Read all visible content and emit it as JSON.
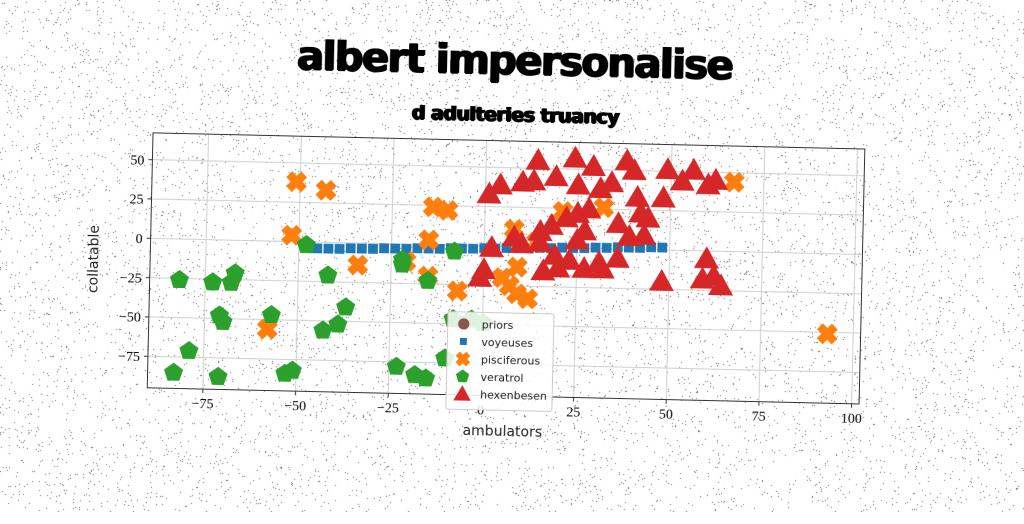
{
  "chart_data": {
    "type": "scatter",
    "title": "albert impersonalise",
    "subtitle": "d adulteries truancy",
    "xlabel": "ambulators",
    "ylabel": "collatable",
    "xlim": [
      -90,
      102
    ],
    "ylim": [
      -95,
      67
    ],
    "xticks": [
      -75,
      -50,
      -25,
      0,
      25,
      50,
      75,
      100
    ],
    "yticks": [
      50,
      25,
      0,
      -25,
      -50,
      -75
    ],
    "xtick_labels": [
      "−75",
      "−50",
      "−25",
      "0",
      "25",
      "50",
      "75",
      "100"
    ],
    "ytick_labels": [
      "50",
      "25",
      "0",
      "−25",
      "−50",
      "−75"
    ],
    "grid": true,
    "legend_position": "lower-center",
    "series": [
      {
        "name": "priors",
        "marker": "circle",
        "color": "#8c564b",
        "points": []
      },
      {
        "name": "voyeuses",
        "marker": "square",
        "color": "#1f77b4",
        "points": [
          [
            -45,
            -4
          ],
          [
            -42,
            -4
          ],
          [
            -39,
            -4
          ],
          [
            -36,
            -3.5
          ],
          [
            -33,
            -3.5
          ],
          [
            -30,
            -3.5
          ],
          [
            -27,
            -3
          ],
          [
            -24,
            -3
          ],
          [
            -21,
            -3
          ],
          [
            -18,
            -2.5
          ],
          [
            -15,
            -2.5
          ],
          [
            -12,
            -2.5
          ],
          [
            -9,
            -2
          ],
          [
            -6,
            -2
          ],
          [
            -3,
            -2
          ],
          [
            0,
            -1.5
          ],
          [
            3,
            -1.5
          ],
          [
            6,
            -1
          ],
          [
            9,
            -1
          ],
          [
            12,
            -1
          ],
          [
            15,
            -0.5
          ],
          [
            18,
            -0.5
          ],
          [
            21,
            0
          ],
          [
            24,
            0
          ],
          [
            27,
            0
          ],
          [
            30,
            0.5
          ],
          [
            33,
            0.5
          ],
          [
            36,
            1
          ],
          [
            39,
            1
          ],
          [
            42,
            1
          ],
          [
            45,
            1.5
          ],
          [
            48,
            1.5
          ]
        ]
      },
      {
        "name": "pisciferous",
        "marker": "x",
        "color": "#ff7f0e",
        "points": [
          [
            -51,
            38
          ],
          [
            -43,
            33
          ],
          [
            -52,
            4
          ],
          [
            -58,
            -56
          ],
          [
            -34,
            -14
          ],
          [
            -21,
            -11
          ],
          [
            -14,
            24
          ],
          [
            -10,
            22
          ],
          [
            -15,
            3
          ],
          [
            -15,
            -20
          ],
          [
            -7,
            -29
          ],
          [
            8,
            11
          ],
          [
            14,
            3
          ],
          [
            9,
            -13
          ],
          [
            5,
            -20
          ],
          [
            7,
            -25
          ],
          [
            9,
            -30
          ],
          [
            12,
            -33
          ],
          [
            32,
            26
          ],
          [
            21,
            23
          ],
          [
            67,
            44
          ],
          [
            93,
            -51
          ]
        ]
      },
      {
        "name": "veratrol",
        "marker": "pentagon",
        "color": "#2ca02c",
        "points": [
          [
            -48,
            -2
          ],
          [
            -82,
            -26
          ],
          [
            -73,
            -27
          ],
          [
            -68,
            -27
          ],
          [
            -67,
            -21
          ],
          [
            -71,
            -48
          ],
          [
            -70,
            -52
          ],
          [
            -57,
            -47
          ],
          [
            -42,
            -21
          ],
          [
            -37,
            -41
          ],
          [
            -39,
            -52
          ],
          [
            -43,
            -56
          ],
          [
            -22,
            -10
          ],
          [
            -22,
            -13
          ],
          [
            -15,
            -23
          ],
          [
            -8,
            -4
          ],
          [
            -8,
            -47
          ],
          [
            -3,
            -47
          ],
          [
            0,
            -49
          ],
          [
            -10,
            -72
          ],
          [
            -23,
            -78
          ],
          [
            -18,
            -83
          ],
          [
            -15,
            -85
          ],
          [
            -51,
            -82
          ],
          [
            -53,
            -84
          ],
          [
            -71,
            -87
          ],
          [
            -83,
            -85
          ],
          [
            -79,
            -71
          ]
        ]
      },
      {
        "name": "hexenbesen",
        "marker": "triangle",
        "color": "#d62728",
        "points": [
          [
            14,
            55
          ],
          [
            24,
            57
          ],
          [
            29,
            52
          ],
          [
            38,
            56
          ],
          [
            40,
            50
          ],
          [
            34,
            42
          ],
          [
            31,
            38
          ],
          [
            25,
            40
          ],
          [
            19,
            45
          ],
          [
            13,
            42
          ],
          [
            4,
            39
          ],
          [
            1,
            33
          ],
          [
            10,
            41
          ],
          [
            49,
            51
          ],
          [
            56,
            51
          ],
          [
            53,
            44
          ],
          [
            60,
            42
          ],
          [
            62,
            45
          ],
          [
            48,
            33
          ],
          [
            41,
            33
          ],
          [
            42,
            23
          ],
          [
            44,
            20
          ],
          [
            28,
            25
          ],
          [
            25,
            22
          ],
          [
            22,
            19
          ],
          [
            36,
            16
          ],
          [
            27,
            11
          ],
          [
            25,
            5
          ],
          [
            18,
            14
          ],
          [
            15,
            10
          ],
          [
            15,
            3
          ],
          [
            8,
            6
          ],
          [
            10,
            2
          ],
          [
            39,
            8
          ],
          [
            43,
            9
          ],
          [
            2,
            -1
          ],
          [
            19,
            -5
          ],
          [
            23,
            -8
          ],
          [
            27,
            -13
          ],
          [
            31,
            -9
          ],
          [
            36,
            -6
          ],
          [
            32,
            -13
          ],
          [
            20,
            -13
          ],
          [
            16,
            -15
          ],
          [
            0,
            -15
          ],
          [
            -1,
            -20
          ],
          [
            59,
            -18
          ],
          [
            60,
            -5
          ],
          [
            62,
            -16
          ],
          [
            48,
            -20
          ],
          [
            64,
            -22
          ]
        ]
      }
    ]
  }
}
